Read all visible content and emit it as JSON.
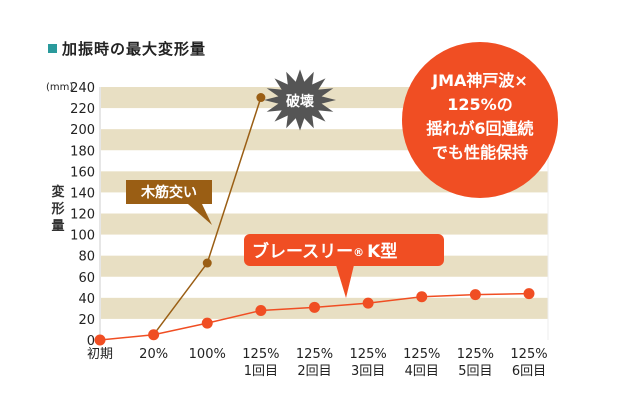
{
  "chart_data": {
    "type": "line",
    "title": "加振時の最大変形量",
    "ylabel": "変形量",
    "yunit": "(mm)",
    "ylim": [
      0,
      240
    ],
    "yticks": [
      0,
      20,
      40,
      60,
      80,
      100,
      120,
      140,
      160,
      180,
      200,
      220,
      240
    ],
    "categories": [
      {
        "line1": "初期",
        "line2": ""
      },
      {
        "line1": "20%",
        "line2": ""
      },
      {
        "line1": "100%",
        "line2": ""
      },
      {
        "line1": "125%",
        "line2": "1回目"
      },
      {
        "line1": "125%",
        "line2": "2回目"
      },
      {
        "line1": "125%",
        "line2": "3回目"
      },
      {
        "line1": "125%",
        "line2": "4回目"
      },
      {
        "line1": "125%",
        "line2": "5回目"
      },
      {
        "line1": "125%",
        "line2": "6回目"
      }
    ],
    "series": [
      {
        "name": "ブレースリー® K型",
        "color": "#f04e23",
        "values": [
          0,
          5,
          16,
          28,
          31,
          35,
          41,
          43,
          44
        ]
      },
      {
        "name": "木筋交い",
        "color": "#9a5e14",
        "values": [
          null,
          5,
          73,
          230,
          null,
          null,
          null,
          null,
          null
        ]
      }
    ],
    "annotations": {
      "wood_label": "木筋交い",
      "k_label_main": "ブレースリー",
      "k_label_reg": "®",
      "k_label_type": "K型",
      "burst_label": "破壊",
      "circle_lines": [
        "JMA神戸波×",
        "125%の",
        "揺れが6回連続",
        "でも性能保持"
      ]
    },
    "colors": {
      "band": "#e8dfc3",
      "accent": "#f04e23",
      "wood": "#9a5e14",
      "burst": "#555555",
      "title_square": "#2a9a9c"
    }
  }
}
